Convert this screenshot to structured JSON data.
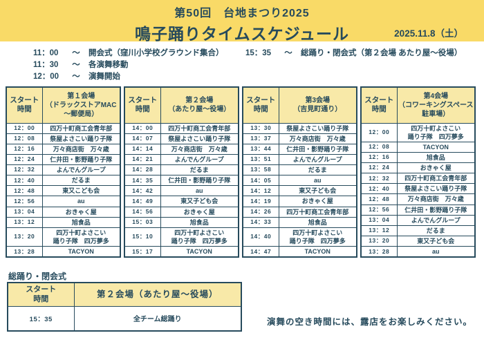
{
  "colors": {
    "banner_bg": "#F9DA67",
    "cell_yellow": "#F8E9A8",
    "text": "#264A5C",
    "line": "#264A5C"
  },
  "banner": {
    "event_line": "第50回　台地まつり2025",
    "title": "鳴子踊りタイムスケジュール",
    "date": "2025.11.8（土）"
  },
  "overview": {
    "items_left": [
      {
        "time": "11：00",
        "sep": "～",
        "label": "開会式（窪川小学校グラウンド集合）"
      },
      {
        "time": "11：30",
        "sep": "～",
        "label": "各演舞移動"
      },
      {
        "time": "12：00",
        "sep": "～",
        "label": "演舞開始"
      }
    ],
    "item_right": {
      "time": "15：35",
      "sep": "～",
      "label": "総踊り・閉会式（第２会場 あたり屋～役場）"
    }
  },
  "time_header": "スタート\n時間",
  "tables": [
    {
      "venue": "第１会場\n（ドラックストアMAC\n～郵便局）",
      "rows": [
        {
          "time": "12：00",
          "team": "四万十町商工会青年部"
        },
        {
          "time": "12：08",
          "team": "祭屋よさこい踊り子隊"
        },
        {
          "time": "12：16",
          "team": "万々商店街　万々歳"
        },
        {
          "time": "12：24",
          "team": "仁井田・影野踊り子隊"
        },
        {
          "time": "12：32",
          "team": "よんでんグループ"
        },
        {
          "time": "12：40",
          "team": "だるま"
        },
        {
          "time": "12：48",
          "team": "東又こども会"
        },
        {
          "time": "12：56",
          "team": "au"
        },
        {
          "time": "13：04",
          "team": "おきゃく屋"
        },
        {
          "time": "13：12",
          "team": "旭食品"
        },
        {
          "time": "13：20",
          "team": "四万十町よさこい\n踊り子隊　四万夢多"
        },
        {
          "time": "13：28",
          "team": "TACYON"
        }
      ]
    },
    {
      "venue": "第２会場\n（あたり屋～役場）",
      "rows": [
        {
          "time": "14：00",
          "team": "四万十町商工会青年部"
        },
        {
          "time": "14：07",
          "team": "祭屋よさこい踊り子隊"
        },
        {
          "time": "14：14",
          "team": "万々商店街　万々歳"
        },
        {
          "time": "14：21",
          "team": "よんでんグループ"
        },
        {
          "time": "14：28",
          "team": "だるま"
        },
        {
          "time": "14：35",
          "team": "仁井田・影野踊り子隊"
        },
        {
          "time": "14：42",
          "team": "au"
        },
        {
          "time": "14：49",
          "team": "東又子ども会"
        },
        {
          "time": "14：56",
          "team": "おきゃく屋"
        },
        {
          "time": "15：03",
          "team": "旭食品"
        },
        {
          "time": "15：10",
          "team": "四万十町よさこい\n踊り子隊　四万夢多"
        },
        {
          "time": "15：17",
          "team": "TACYON"
        }
      ]
    },
    {
      "venue": "第3会場\n（吉見町通り）",
      "rows": [
        {
          "time": "13：30",
          "team": "祭屋よさこい踊り子隊"
        },
        {
          "time": "13：37",
          "team": "万々商店街　万々歳"
        },
        {
          "time": "13：44",
          "team": "仁井田・影野踊り子隊"
        },
        {
          "time": "13：51",
          "team": "よんでんグループ"
        },
        {
          "time": "13：58",
          "team": "だるま"
        },
        {
          "time": "14：05",
          "team": "au"
        },
        {
          "time": "14：12",
          "team": "東又子ども会"
        },
        {
          "time": "14：19",
          "team": "おきゃく屋"
        },
        {
          "time": "14：26",
          "team": "四万十町商工会青年部"
        },
        {
          "time": "14：33",
          "team": "旭食品"
        },
        {
          "time": "14：40",
          "team": "四万十町よさこい\n踊り子隊　四万夢多"
        },
        {
          "time": "14：47",
          "team": "TACYON"
        }
      ]
    },
    {
      "venue": "第4会場\n（コワーキングスペース\n駐車場）",
      "rows": [
        {
          "time": "12：00",
          "team": "四万十町よさこい\n踊り子隊　四万夢多"
        },
        {
          "time": "12：08",
          "team": "TACYON"
        },
        {
          "time": "12：16",
          "team": "旭食品"
        },
        {
          "time": "12：24",
          "team": "おきゃく屋"
        },
        {
          "time": "12：32",
          "team": "四万十町商工会青年部"
        },
        {
          "time": "12：40",
          "team": "祭屋よさこい踊り子隊"
        },
        {
          "time": "12：48",
          "team": "万々商店街　万々歳"
        },
        {
          "time": "12：56",
          "team": "仁井田・影野踊り子隊"
        },
        {
          "time": "13：04",
          "team": "よんでんグループ"
        },
        {
          "time": "13：12",
          "team": "だるま"
        },
        {
          "time": "13：20",
          "team": "東又子ども会"
        },
        {
          "time": "13：28",
          "team": "au"
        }
      ]
    }
  ],
  "finale": {
    "label": "総踊り・閉会式",
    "time_header": "スタート\n時間",
    "venue": "第２会場（あたり屋～役場）",
    "rows": [
      {
        "time": "15：35",
        "team": "全チーム総踊り"
      }
    ]
  },
  "note": "演舞の空き時間には、露店をお楽しみください。"
}
